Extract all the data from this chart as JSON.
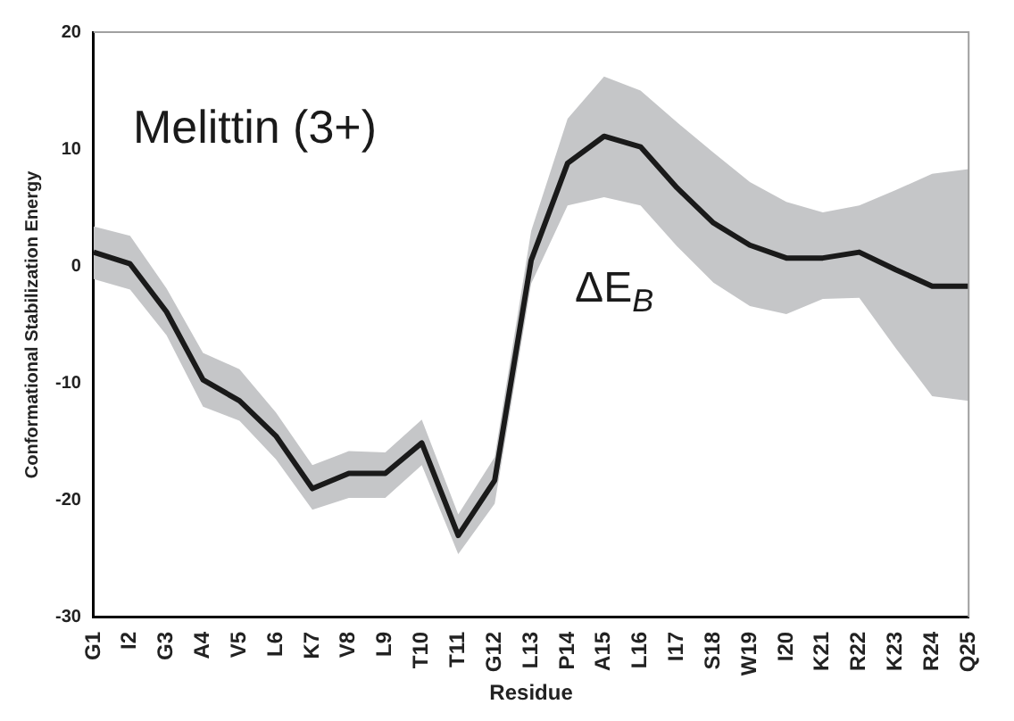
{
  "chart_data": {
    "type": "line",
    "title": "Melittin (3+)",
    "xlabel": "Residue",
    "ylabel": "Conformational Stabilization Energy",
    "categories": [
      "G1",
      "I2",
      "G3",
      "A4",
      "V5",
      "L6",
      "K7",
      "V8",
      "L9",
      "T10",
      "T11",
      "G12",
      "L13",
      "P14",
      "A15",
      "L16",
      "I17",
      "S18",
      "W19",
      "I20",
      "K21",
      "R22",
      "K23",
      "R24",
      "Q25"
    ],
    "series": [
      {
        "color": "#1a1a1a",
        "values": [
          1.2,
          0.2,
          -3.9,
          -9.7,
          -11.5,
          -14.5,
          -19,
          -17.7,
          -17.7,
          -15.1,
          -23,
          -18.3,
          0.5,
          8.8,
          11.1,
          10.2,
          6.7,
          3.7,
          1.8,
          0.7,
          0.7,
          1.2,
          -0.3,
          -1.7,
          -1.7
        ],
        "lower": [
          -1.1,
          -2,
          -5.9,
          -12,
          -13.2,
          -16.5,
          -20.8,
          -19.8,
          -19.8,
          -17,
          -24.6,
          -20.3,
          -1.5,
          5.2,
          5.9,
          5.2,
          1.7,
          -1.4,
          -3.4,
          -4.1,
          -2.8,
          -2.7,
          -7,
          -11.1,
          -11.5
        ],
        "upper": [
          3.4,
          2.6,
          -1.9,
          -7.4,
          -8.8,
          -12.5,
          -17,
          -15.8,
          -15.9,
          -13.1,
          -21.2,
          -16.3,
          3,
          12.6,
          16.2,
          15,
          12.3,
          9.7,
          7.2,
          5.5,
          4.6,
          5.2,
          6.5,
          7.9,
          8.3
        ]
      }
    ],
    "annotations": [
      "ΔE$_{B}$"
    ],
    "ylim": [
      -30,
      20
    ],
    "yticks": [
      -30,
      -20,
      -10,
      0,
      10,
      20
    ],
    "grid": false,
    "legend": false,
    "marker": "none",
    "line_style": "solid"
  }
}
